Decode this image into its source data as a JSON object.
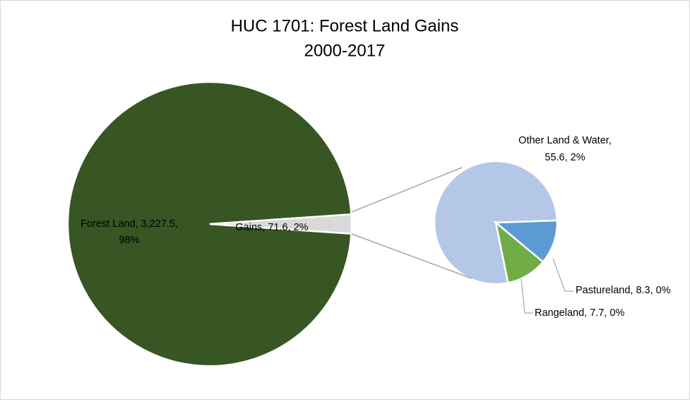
{
  "chart_data": {
    "type": "pie-of-pie",
    "title": "HUC 1701: Forest Land Gains",
    "subtitle": "2000-2017",
    "main": {
      "labels": [
        [
          "Forest Land, 3,227.5,",
          "98%"
        ],
        [
          "Gains, 71.6, 2%"
        ]
      ],
      "values": [
        3227.5,
        71.6
      ],
      "colors": [
        "#375623",
        "#d9d9d9"
      ]
    },
    "secondary": {
      "labels": [
        [
          "Other Land & Water,",
          "55.6, 2%"
        ],
        [
          "Pastureland, 8.3, 0%"
        ],
        [
          "Rangeland, 7.7, 0%"
        ]
      ],
      "values": [
        55.6,
        8.3,
        7.7
      ],
      "colors": [
        "#b4c7e7",
        "#5b9bd5",
        "#70ad47"
      ]
    }
  }
}
